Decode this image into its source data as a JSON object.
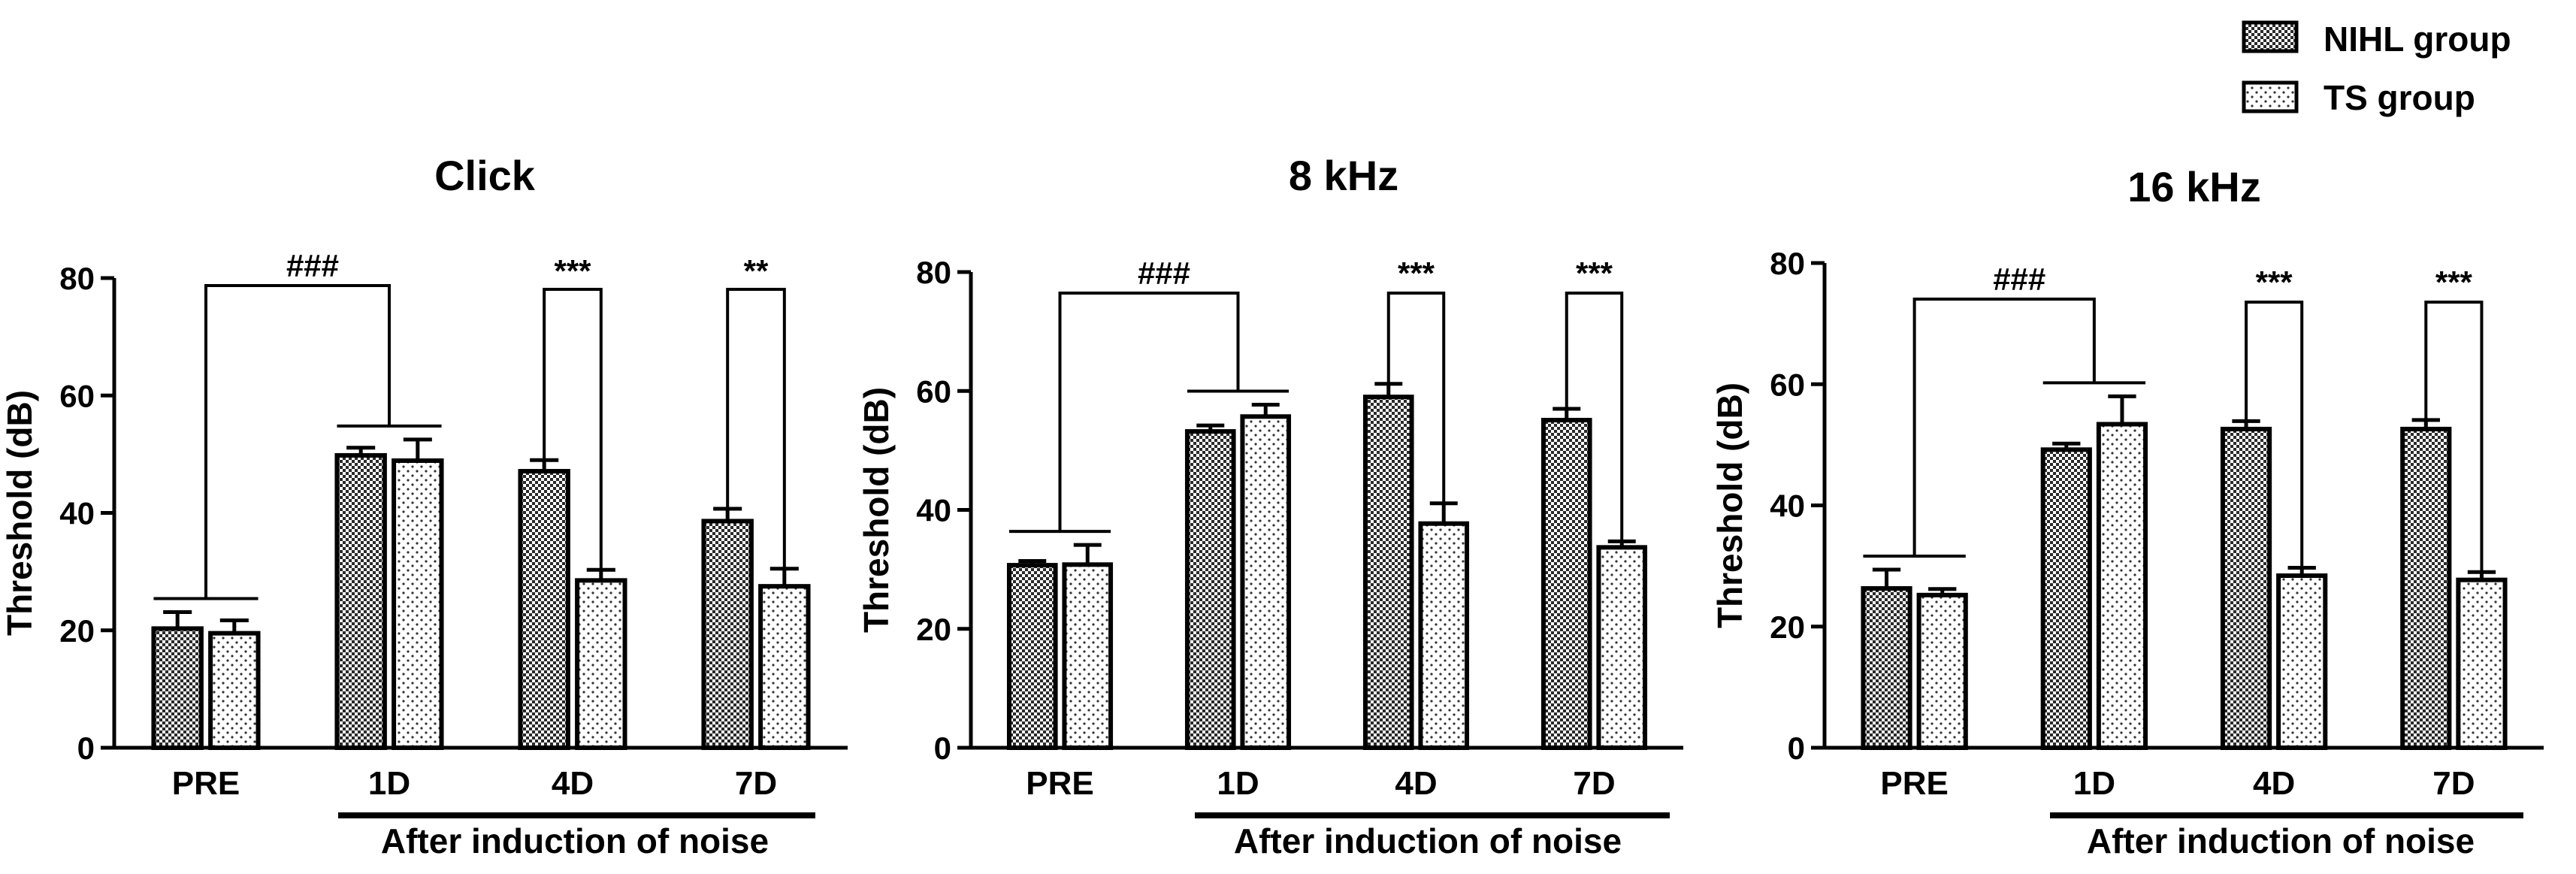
{
  "legend": {
    "items": [
      {
        "label": "NIHL group",
        "pattern": "checker"
      },
      {
        "label": "TS group",
        "pattern": "dots"
      }
    ]
  },
  "chart_data": [
    {
      "type": "bar",
      "title": "Click",
      "ylabel": "Threshold (dB)",
      "xlabel": "After induction of noise",
      "categories": [
        "PRE",
        "1D",
        "4D",
        "7D"
      ],
      "ylim": [
        0,
        80
      ],
      "yticks": [
        0,
        20,
        40,
        60,
        80
      ],
      "series": [
        {
          "name": "NIHL group",
          "values": [
            20.3,
            49.8,
            47.1,
            38.6
          ],
          "errors": [
            2.8,
            1.3,
            1.9,
            2.1
          ]
        },
        {
          "name": "TS group",
          "values": [
            19.5,
            48.9,
            28.5,
            27.5
          ],
          "errors": [
            2.2,
            3.6,
            1.8,
            3.0
          ]
        }
      ],
      "annotations": [
        {
          "text": "###",
          "type": "bracket-group",
          "from": "PRE",
          "to": "1D"
        },
        {
          "text": "***",
          "type": "bracket-pair",
          "category": "4D"
        },
        {
          "text": "**",
          "type": "bracket-pair",
          "category": "7D"
        }
      ]
    },
    {
      "type": "bar",
      "title": "8 kHz",
      "ylabel": "Threshold (dB)",
      "xlabel": "After induction of noise",
      "categories": [
        "PRE",
        "1D",
        "4D",
        "7D"
      ],
      "ylim": [
        0,
        80
      ],
      "yticks": [
        0,
        20,
        40,
        60,
        80
      ],
      "series": [
        {
          "name": "NIHL group",
          "values": [
            30.7,
            53.2,
            59.0,
            55.1
          ],
          "errors": [
            0.7,
            1.0,
            2.2,
            1.9
          ]
        },
        {
          "name": "TS group",
          "values": [
            30.8,
            55.7,
            37.7,
            33.7
          ],
          "errors": [
            3.3,
            2.0,
            3.4,
            1.0
          ]
        }
      ],
      "annotations": [
        {
          "text": "###",
          "type": "bracket-group",
          "from": "PRE",
          "to": "1D"
        },
        {
          "text": "***",
          "type": "bracket-pair",
          "category": "4D"
        },
        {
          "text": "***",
          "type": "bracket-pair",
          "category": "7D"
        }
      ]
    },
    {
      "type": "bar",
      "title": "16 kHz",
      "ylabel": "Threshold (dB)",
      "xlabel": "After induction of noise",
      "categories": [
        "PRE",
        "1D",
        "4D",
        "7D"
      ],
      "ylim": [
        0,
        80
      ],
      "yticks": [
        0,
        20,
        40,
        60,
        80
      ],
      "series": [
        {
          "name": "NIHL group",
          "values": [
            26.3,
            49.2,
            52.6,
            52.6
          ],
          "errors": [
            3.1,
            1.0,
            1.3,
            1.5
          ]
        },
        {
          "name": "TS group",
          "values": [
            25.2,
            53.4,
            28.4,
            27.7
          ],
          "errors": [
            1.0,
            4.6,
            1.3,
            1.3
          ]
        }
      ],
      "annotations": [
        {
          "text": "###",
          "type": "bracket-group",
          "from": "PRE",
          "to": "1D"
        },
        {
          "text": "***",
          "type": "bracket-pair",
          "category": "4D"
        },
        {
          "text": "***",
          "type": "bracket-pair",
          "category": "7D"
        }
      ]
    }
  ]
}
